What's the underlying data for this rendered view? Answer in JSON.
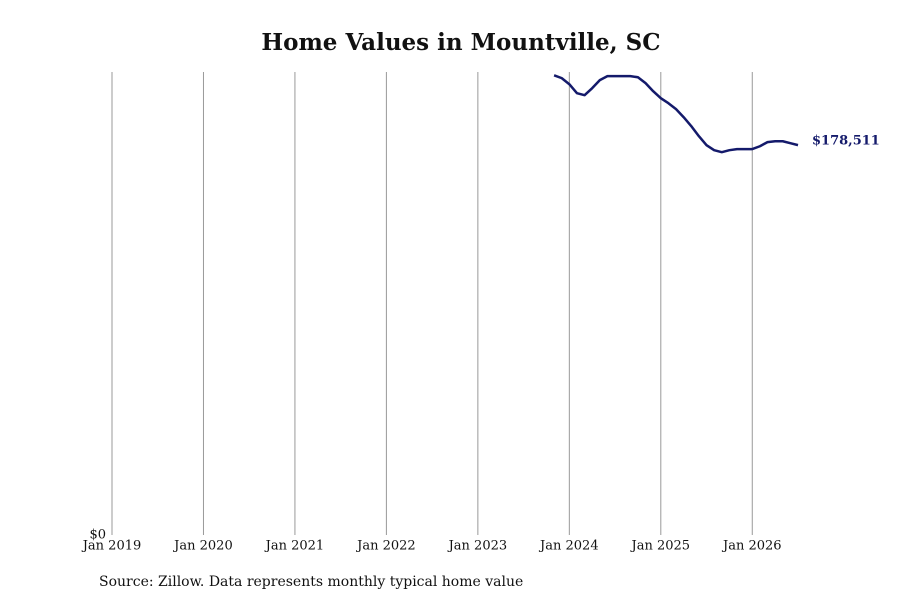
{
  "chart_data": {
    "type": "line",
    "title": "Home Values in Mountville, SC",
    "source": "Source: Zillow. Data represents monthly typical home value",
    "x": [
      "2023-11",
      "2023-12",
      "2024-01",
      "2024-02",
      "2024-03",
      "2024-04",
      "2024-05",
      "2024-06",
      "2024-07",
      "2024-08",
      "2024-09",
      "2024-10",
      "2024-11",
      "2024-12",
      "2025-01",
      "2025-02",
      "2025-03",
      "2025-04",
      "2025-05",
      "2025-06",
      "2025-07",
      "2025-08",
      "2025-09",
      "2025-10",
      "2025-11",
      "2025-12",
      "2026-01",
      "2026-02",
      "2026-03",
      "2026-04",
      "2026-05",
      "2026-06",
      "2026-07"
    ],
    "series": [
      {
        "name": "Typical home value",
        "color": "#141a6b",
        "values": [
          210500,
          209200,
          206400,
          202300,
          201400,
          204600,
          208300,
          210100,
          210100,
          210100,
          210100,
          209600,
          206900,
          203200,
          200000,
          197700,
          195000,
          191300,
          187200,
          182600,
          178500,
          176200,
          175300,
          176200,
          176700,
          176700,
          176700,
          178000,
          179900,
          180300,
          180300,
          179400,
          178511
        ],
        "value_labels": [
          null,
          null,
          null,
          null,
          null,
          null,
          null,
          null,
          null,
          null,
          null,
          null,
          null,
          null,
          null,
          null,
          null,
          null,
          null,
          null,
          null,
          null,
          null,
          null,
          null,
          null,
          null,
          null,
          null,
          null,
          null,
          null,
          "$178,511"
        ]
      }
    ],
    "xlim": [
      "2019-01",
      "2026-07"
    ],
    "xticks": [
      {
        "value": "2019-01",
        "label": "Jan 2019"
      },
      {
        "value": "2020-01",
        "label": "Jan 2020"
      },
      {
        "value": "2021-01",
        "label": "Jan 2021"
      },
      {
        "value": "2022-01",
        "label": "Jan 2022"
      },
      {
        "value": "2023-01",
        "label": "Jan 2023"
      },
      {
        "value": "2024-01",
        "label": "Jan 2024"
      },
      {
        "value": "2025-01",
        "label": "Jan 2025"
      },
      {
        "value": "2026-01",
        "label": "Jan 2026"
      }
    ],
    "ylim": [
      0,
      212000
    ],
    "yticks": [
      {
        "value": 0,
        "label": "$0"
      }
    ],
    "grid": "x"
  }
}
